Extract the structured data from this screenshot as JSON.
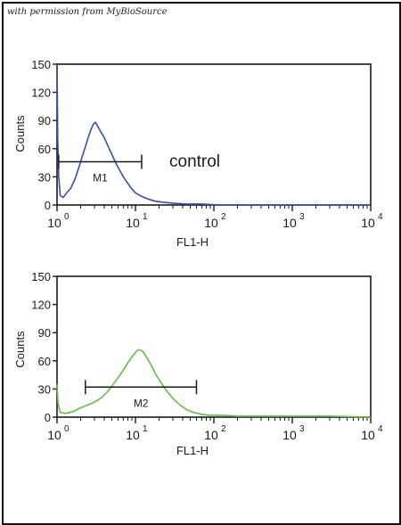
{
  "watermark": "with permission from MyBioSource",
  "colors": {
    "panel1": "#3a4fa6",
    "panel2": "#66bb46",
    "frame": "#111111",
    "text": "#1a1a1a"
  },
  "chart_data": [
    {
      "type": "line",
      "title": "",
      "xlabel": "FL1-H",
      "ylabel": "Counts",
      "xscale": "log",
      "xlim": [
        1,
        10000
      ],
      "ylim": [
        0,
        150
      ],
      "yticks": [
        0,
        30,
        60,
        90,
        120,
        150
      ],
      "xticks": [
        1,
        10,
        100,
        1000,
        10000
      ],
      "xtick_labels": [
        "0",
        "1",
        "2",
        "3",
        "4"
      ],
      "xtick_base": "10",
      "annotation": "control",
      "marker": {
        "label": "M1",
        "x": [
          1.05,
          12
        ],
        "y": 46
      },
      "series": [
        {
          "color": "#3a4fa6",
          "x": [
            1.0,
            1.02,
            1.05,
            1.1,
            1.2,
            1.3,
            1.5,
            1.7,
            1.9,
            2.1,
            2.3,
            2.5,
            2.7,
            2.9,
            3.1,
            3.3,
            3.6,
            4.0,
            4.5,
            5.0,
            5.6,
            6.3,
            7.0,
            8.0,
            9.0,
            10.0,
            11.5,
            13.0,
            15.0,
            18.0,
            22.0,
            30.0,
            45.0,
            70.0,
            120.0,
            250.0,
            600.0,
            2000.0,
            10000.0
          ],
          "y": [
            150,
            70,
            30,
            10,
            8,
            12,
            18,
            28,
            40,
            52,
            62,
            72,
            80,
            86,
            88,
            84,
            78,
            72,
            62,
            54,
            45,
            37,
            30,
            23,
            17,
            13,
            10,
            8,
            6,
            4,
            3,
            2,
            1,
            1,
            0,
            0,
            0,
            0,
            0
          ]
        }
      ]
    },
    {
      "type": "line",
      "title": "",
      "xlabel": "FL1-H",
      "ylabel": "Counts",
      "xscale": "log",
      "xlim": [
        1,
        10000
      ],
      "ylim": [
        0,
        150
      ],
      "yticks": [
        0,
        30,
        60,
        90,
        120,
        150
      ],
      "xticks": [
        1,
        10,
        100,
        1000,
        10000
      ],
      "xtick_labels": [
        "0",
        "1",
        "2",
        "3",
        "4"
      ],
      "xtick_base": "10",
      "marker": {
        "label": "M2",
        "x": [
          2.3,
          60
        ],
        "y": 32
      },
      "series": [
        {
          "color": "#66bb46",
          "x": [
            1.0,
            1.03,
            1.1,
            1.3,
            1.6,
            2.0,
            2.5,
            3.0,
            3.6,
            4.3,
            5.0,
            6.0,
            7.0,
            8.0,
            9.0,
            10.0,
            11.0,
            12.5,
            14.0,
            16.0,
            18.0,
            21.0,
            25.0,
            30.0,
            37.0,
            45.0,
            55.0,
            70.0,
            90.0,
            130.0,
            200.0,
            400.0,
            1000.0,
            3000.0,
            10000.0
          ],
          "y": [
            35,
            15,
            5,
            4,
            6,
            10,
            13,
            16,
            20,
            26,
            33,
            42,
            50,
            58,
            64,
            69,
            72,
            70,
            63,
            55,
            46,
            37,
            28,
            20,
            13,
            8,
            5,
            3,
            2,
            2,
            1,
            1,
            1,
            1,
            0
          ]
        }
      ]
    }
  ]
}
